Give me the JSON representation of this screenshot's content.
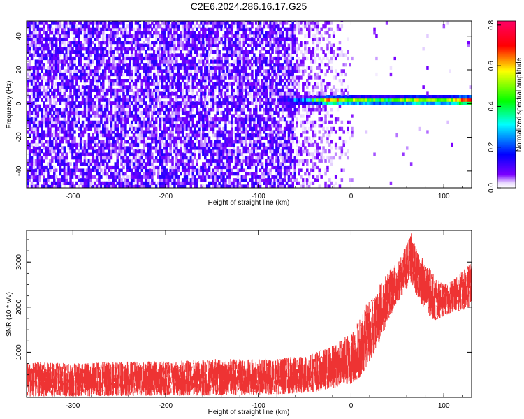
{
  "title": "C2E6.2024.286.16.17.G25",
  "chart_data": [
    {
      "type": "heatmap",
      "xlabel": "Height of straight line (km)",
      "ylabel": "Frequency (Hz)",
      "xlim": [
        -350,
        130
      ],
      "ylim": [
        -50,
        49
      ],
      "xticks": [
        -300,
        -200,
        -100,
        0,
        100
      ],
      "yticks": [
        -40,
        -20,
        0,
        20,
        40
      ],
      "grid": false,
      "colorbar": {
        "label": "Normalized spectral amplitude",
        "range": [
          0,
          0.82
        ],
        "ticks": [
          0.0,
          0.2,
          0.4,
          0.6,
          0.8
        ],
        "colormap": [
          "#ffffff",
          "#7a00ff",
          "#0000ff",
          "#00ffff",
          "#00ff00",
          "#ffff00",
          "#ff0000",
          "#ff0066"
        ]
      },
      "noise_region_x": [
        -350,
        -30
      ],
      "noise_amplitude_range": [
        0.02,
        0.14
      ],
      "ridge": {
        "frequency": 1,
        "x_start": -80,
        "x_end": 130,
        "amplitude_profile": [
          {
            "x": -80,
            "a": 0.15
          },
          {
            "x": -60,
            "a": 0.3
          },
          {
            "x": -45,
            "a": 0.38
          },
          {
            "x": -25,
            "a": 0.72
          },
          {
            "x": 0,
            "a": 0.55
          },
          {
            "x": 40,
            "a": 0.45
          },
          {
            "x": 70,
            "a": 0.6
          },
          {
            "x": 100,
            "a": 0.5
          },
          {
            "x": 120,
            "a": 0.8
          },
          {
            "x": 130,
            "a": 0.75
          }
        ]
      }
    },
    {
      "type": "line",
      "xlabel": "Height of straight line (km)",
      "ylabel": "SNR (10 * v/v)",
      "xlim": [
        -350,
        130
      ],
      "ylim": [
        0,
        3700
      ],
      "xticks": [
        -300,
        -200,
        -100,
        0,
        100
      ],
      "yticks": [
        1000,
        2000,
        3000
      ],
      "grid": false,
      "color": "#ee3333",
      "envelope": {
        "x": [
          -350,
          -300,
          -250,
          -200,
          -150,
          -100,
          -60,
          -40,
          -20,
          0,
          10,
          20,
          30,
          40,
          50,
          60,
          65,
          70,
          80,
          90,
          100,
          110,
          120,
          130
        ],
        "low": [
          20,
          20,
          30,
          40,
          40,
          60,
          80,
          120,
          200,
          300,
          450,
          800,
          1200,
          1700,
          2100,
          2400,
          2500,
          2300,
          1900,
          1700,
          1800,
          1900,
          1900,
          2000
        ],
        "high": [
          800,
          750,
          800,
          800,
          850,
          850,
          900,
          1000,
          1150,
          1450,
          1800,
          2200,
          2500,
          2800,
          3000,
          3400,
          3700,
          3300,
          3000,
          2700,
          2500,
          2600,
          2800,
          3000
        ]
      }
    }
  ]
}
